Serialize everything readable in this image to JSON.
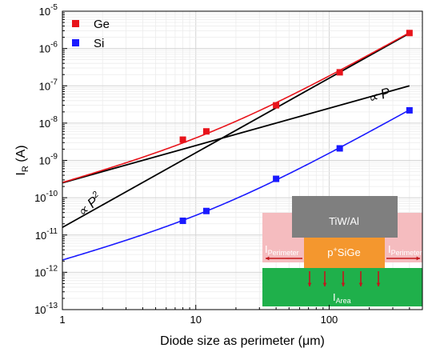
{
  "chart_data": {
    "type": "scatter",
    "xlabel": "Diode size as perimeter (μm)",
    "ylabel": "I",
    "ylabel_sub": "R",
    "ylabel_unit": " (A)",
    "xscale": "log",
    "yscale": "log",
    "xlim": [
      1,
      500
    ],
    "ylim": [
      1e-13,
      1e-05
    ],
    "x_ticks": [
      "1",
      "10",
      "100"
    ],
    "y_ticks": [
      {
        "base": "10",
        "exp": "-5"
      },
      {
        "base": "10",
        "exp": "-6"
      },
      {
        "base": "10",
        "exp": "-7"
      },
      {
        "base": "10",
        "exp": "-8"
      },
      {
        "base": "10",
        "exp": "-9"
      },
      {
        "base": "10",
        "exp": "-10"
      },
      {
        "base": "10",
        "exp": "-11"
      },
      {
        "base": "10",
        "exp": "-12"
      },
      {
        "base": "10",
        "exp": "-13"
      }
    ],
    "grid": true,
    "legend_position": "top-left",
    "series": [
      {
        "name": "Ge",
        "color": "#e8141b",
        "marker": "square",
        "points": [
          [
            8,
            3.6e-09
          ],
          [
            12,
            6e-09
          ],
          [
            40,
            3e-08
          ],
          [
            120,
            2.3e-07
          ],
          [
            400,
            2.6e-06
          ]
        ],
        "fit": {
          "a": 2.4e-10,
          "b": 1.6e-11
        }
      },
      {
        "name": "Si",
        "color": "#1a1aff",
        "marker": "square",
        "points": [
          [
            8,
            2.4e-11
          ],
          [
            12,
            4.4e-11
          ],
          [
            40,
            3.2e-10
          ],
          [
            120,
            2.1e-09
          ],
          [
            400,
            2.2e-08
          ]
        ],
        "fit": {
          "a": 2e-12,
          "b": 1.36e-13
        }
      }
    ],
    "reference_lines": [
      {
        "label": "∝ P",
        "from": [
          1,
          2.5e-10
        ],
        "to": [
          400,
          1e-07
        ],
        "color": "#000000"
      },
      {
        "label": "∝ P",
        "exp": "2",
        "from": [
          1,
          1.6e-11
        ],
        "to": [
          400,
          2.56e-06
        ],
        "color": "#000000"
      }
    ],
    "inset": {
      "top_label": "TiW/Al",
      "mid_label_sup": "+",
      "mid_label_pre": "p",
      "mid_label_post": "SiGe",
      "left_label_main": "I",
      "left_label_sub": "Perimeter",
      "right_label_main": "I",
      "right_label_sub": "Perimeter",
      "bottom_label_main": "I",
      "bottom_label_sub": "Area",
      "colors": {
        "metal": "#7f7f7f",
        "sige": "#f4972e",
        "substrate": "#1fb04b",
        "side": "#f5bcbf",
        "arrow": "#c3161c"
      }
    }
  }
}
